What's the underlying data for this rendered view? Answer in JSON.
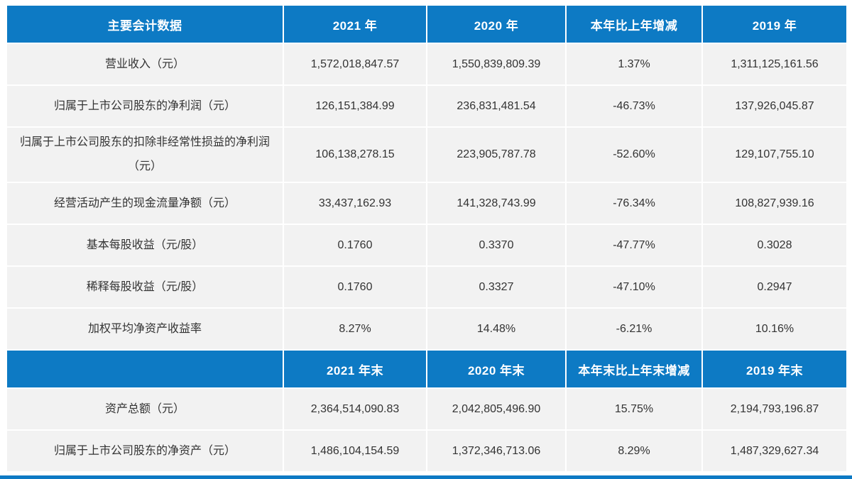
{
  "colors": {
    "accent": "#0d7ac4",
    "row_bg": "#f2f2f2",
    "header_text": "#ffffff",
    "cell_text": "#333333",
    "page_bg": "#ffffff"
  },
  "table": {
    "header1": {
      "label": "主要会计数据",
      "cols": [
        "2021 年",
        "2020 年",
        "本年比上年增减",
        "2019 年"
      ]
    },
    "rows1": [
      {
        "label": "营业收入（元）",
        "values": [
          "1,572,018,847.57",
          "1,550,839,809.39",
          "1.37%",
          "1,311,125,161.56"
        ]
      },
      {
        "label": "归属于上市公司股东的净利润（元）",
        "values": [
          "126,151,384.99",
          "236,831,481.54",
          "-46.73%",
          "137,926,045.87"
        ]
      },
      {
        "label": "归属于上市公司股东的扣除非经常性损益的净利润（元）",
        "values": [
          "106,138,278.15",
          "223,905,787.78",
          "-52.60%",
          "129,107,755.10"
        ]
      },
      {
        "label": "经营活动产生的现金流量净额（元）",
        "values": [
          "33,437,162.93",
          "141,328,743.99",
          "-76.34%",
          "108,827,939.16"
        ]
      },
      {
        "label": "基本每股收益（元/股）",
        "values": [
          "0.1760",
          "0.3370",
          "-47.77%",
          "0.3028"
        ]
      },
      {
        "label": "稀释每股收益（元/股）",
        "values": [
          "0.1760",
          "0.3327",
          "-47.10%",
          "0.2947"
        ]
      },
      {
        "label": "加权平均净资产收益率",
        "values": [
          "8.27%",
          "14.48%",
          "-6.21%",
          "10.16%"
        ]
      }
    ],
    "header2": {
      "label": "",
      "cols": [
        "2021 年末",
        "2020 年末",
        "本年末比上年末增减",
        "2019 年末"
      ]
    },
    "rows2": [
      {
        "label": "资产总额（元）",
        "values": [
          "2,364,514,090.83",
          "2,042,805,496.90",
          "15.75%",
          "2,194,793,196.87"
        ]
      },
      {
        "label": "归属于上市公司股东的净资产（元）",
        "values": [
          "1,486,104,154.59",
          "1,372,346,713.06",
          "8.29%",
          "1,487,329,627.34"
        ]
      }
    ]
  }
}
